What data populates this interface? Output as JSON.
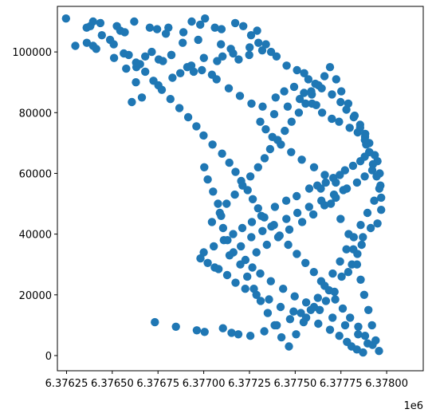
{
  "chart_data": {
    "type": "scatter",
    "title": "",
    "xlabel": "",
    "ylabel": "",
    "x_offset_label": "1e6",
    "xlim": [
      6.3762,
      6.3782
    ],
    "ylim": [
      -5000,
      115000
    ],
    "xticks": [
      6.37625,
      6.3765,
      6.37675,
      6.377,
      6.37725,
      6.3775,
      6.37775,
      6.378
    ],
    "xtick_labels": [
      "6.37625",
      "6.37650",
      "6.37675",
      "6.37700",
      "6.37725",
      "6.37750",
      "6.37775",
      "6.37800"
    ],
    "yticks": [
      0,
      20000,
      40000,
      60000,
      80000,
      100000
    ],
    "ytick_labels": [
      "0",
      "20000",
      "40000",
      "60000",
      "80000",
      "100000"
    ],
    "grid": false,
    "color": "#1f77b4",
    "series": [
      {
        "x": [
          6.376247,
          6.376361,
          6.37636,
          6.376395,
          6.376395,
          6.376435,
          6.376488,
          6.376525,
          6.376544,
          6.376568,
          6.37662,
          6.376705,
          6.376745,
          6.376793,
          6.376807,
          6.376889,
          6.376934,
          6.376981,
          6.377007,
          6.377061,
          6.377097,
          6.377172,
          6.377216,
          6.377259,
          6.377292,
          6.377299,
          6.37732,
          6.37734,
          6.377249,
          6.377191,
          6.377148,
          6.377094,
          6.37697,
          6.376885,
          6.376823,
          6.376777,
          6.376716,
          6.376652,
          6.37659,
          6.37651,
          6.376412,
          6.376298,
          6.376576,
          6.376632,
          6.37668,
          6.376754,
          6.376823,
          6.376932,
          6.377001,
          6.377073,
          6.377103,
          6.377161,
          6.377251,
          6.377368,
          6.377398,
          6.377453,
          6.37751,
          6.377549,
          6.377572,
          6.37761,
          6.377645,
          6.377701,
          6.377748,
          6.37778,
          6.37782,
          6.377855,
          6.377883,
          6.377905,
          6.377935,
          6.37795,
          6.377962,
          6.377966,
          6.37797,
          6.37797,
          6.37795,
          6.377913,
          6.37787,
          6.377863,
          6.37784,
          6.37781,
          6.37779,
          6.377754,
          6.377715,
          6.377668,
          6.377603,
          6.377531,
          6.377472,
          6.377399,
          6.377331,
          6.377255,
          6.377189,
          6.377152,
          6.377105,
          6.377005,
          6.376962,
          6.376848,
          6.376733,
          6.376629,
          6.376607,
          6.376662,
          6.376752,
          6.376829,
          6.376872,
          6.37691,
          6.376945,
          6.37699,
          6.377045,
          6.37707,
          6.377137,
          6.377198,
          6.377261,
          6.377322,
          6.377393,
          6.37744,
          6.377494,
          6.377548,
          6.377592,
          6.377615,
          6.377647,
          6.3777,
          6.37774,
          6.377798,
          6.377842,
          6.377882,
          6.377888,
          6.377905,
          6.37788,
          6.377856,
          6.377816,
          6.377772,
          6.377744,
          6.377708,
          6.377667,
          6.377621,
          6.377577,
          6.377508,
          6.377451,
          6.377389,
          6.377315,
          6.377263,
          6.377211,
          6.377161,
          6.37711,
          6.377055,
          6.377,
          6.376982,
          6.377022,
          6.377081,
          6.377128,
          6.377174,
          6.377227,
          6.377288,
          6.377357,
          6.37742,
          6.377491,
          6.37756,
          6.377626,
          6.37769,
          6.377741,
          6.377783,
          6.377808,
          6.377837,
          6.377871,
          6.377896,
          6.377844,
          6.377773,
          6.377704,
          6.377634,
          6.37756,
          6.377497,
          6.377434,
          6.377367,
          6.377309,
          6.377266,
          6.377228,
          6.377288,
          6.377345,
          6.377407,
          6.377468,
          6.377538,
          6.377599,
          6.37766,
          6.377722,
          6.377763,
          6.377722,
          6.377662,
          6.377603,
          6.377536,
          6.377478,
          6.377422,
          6.377375,
          6.377339,
          6.377309,
          6.377385,
          6.377459,
          6.377525,
          6.377588,
          6.37764,
          6.377695,
          6.377748,
          6.377792,
          6.377818,
          6.377838,
          6.377858,
          6.377877,
          6.3779,
          6.37792,
          6.37794,
          6.377958,
          6.377923,
          6.377882,
          6.377845,
          6.3778,
          6.37776,
          6.377719,
          6.377685,
          6.377642,
          6.377602,
          6.377556,
          6.377509,
          6.377462,
          6.377415,
          6.37737,
          6.377331,
          6.377297,
          6.377268,
          6.37724,
          6.377205,
          6.377174,
          6.37714,
          6.3771,
          6.377048,
          6.376999,
          6.37696,
          6.376915,
          6.376867,
          6.376818,
          6.376771,
          6.376725,
          6.37668,
          6.37663,
          6.376563,
          6.376508,
          6.376443,
          6.37638,
          6.377045,
          6.377088,
          6.377125,
          6.37717,
          6.377212,
          6.377255,
          6.377297,
          6.377333,
          6.377363,
          6.377404,
          6.377443,
          6.37748,
          6.37752,
          6.377557,
          6.377591,
          6.377627,
          6.37766,
          6.37769,
          6.377724,
          6.377752,
          6.37779,
          6.377825,
          6.377855,
          6.377881,
          6.377905,
          6.377925,
          6.377945,
          6.37796,
          6.377932,
          6.377895,
          6.377858,
          6.37782,
          6.37778,
          6.377745,
          6.377705,
          6.377661,
          6.377624,
          6.377585,
          6.377546,
          6.377505,
          6.377466,
          6.377425,
          6.377388,
          6.37735,
          6.377311,
          6.377274,
          6.377238,
          6.3772,
          6.377162,
          6.37713,
          6.377106,
          6.377095,
          6.377078,
          6.377051,
          6.377022,
          6.377003,
          6.37706,
          6.377141,
          6.377203,
          6.37726,
          6.377321,
          6.377384,
          6.377452,
          6.377512,
          6.377576,
          6.377643,
          6.377712,
          6.377782,
          6.377838,
          6.37788,
          6.377921
        ],
        "y": [
          111000,
          103000,
          108000,
          110000,
          102000,
          109500,
          104000,
          108500,
          107000,
          106500,
          110000,
          108000,
          107500,
          106000,
          108000,
          106500,
          110000,
          109000,
          111000,
          108000,
          107500,
          109500,
          108500,
          105500,
          107000,
          103000,
          100500,
          102500,
          99000,
          97500,
          101000,
          102500,
          104000,
          103000,
          99000,
          97000,
          100000,
          96000,
          99000,
          98000,
          101000,
          102000,
          94500,
          95000,
          98500,
          97500,
          99000,
          95500,
          98000,
          97000,
          98500,
          99500,
          101500,
          100000,
          98500,
          95500,
          94000,
          93000,
          91000,
          89500,
          88000,
          86000,
          83500,
          81000,
          78500,
          76000,
          73000,
          70000,
          66000,
          64000,
          60000,
          56000,
          52000,
          48000,
          43500,
          42000,
          39000,
          36500,
          33500,
          30000,
          27500,
          26000,
          21000,
          18000,
          16000,
          14000,
          12000,
          10000,
          8000,
          6500,
          7000,
          7500,
          9000,
          7800,
          8300,
          9500,
          11000,
          90000,
          83500,
          85000,
          89000,
          91500,
          93000,
          95000,
          93500,
          94000,
          92500,
          91000,
          88000,
          85500,
          83000,
          82000,
          85000,
          87000,
          88500,
          86500,
          83000,
          82500,
          80000,
          78000,
          77000,
          75000,
          73500,
          72000,
          69500,
          67000,
          65500,
          64000,
          62500,
          61000,
          59500,
          58500,
          57000,
          56000,
          55000,
          52500,
          51000,
          49000,
          46000,
          44000,
          42000,
          40000,
          38000,
          36000,
          34000,
          32000,
          30500,
          28500,
          26500,
          24000,
          22000,
          20000,
          18500,
          16000,
          14500,
          12500,
          10500,
          8500,
          6500,
          4500,
          3000,
          2000,
          1000,
          4000,
          7000,
          10000,
          12500,
          15000,
          17500,
          19500,
          22000,
          24500,
          27000,
          29000,
          31500,
          34000,
          36500,
          39000,
          41500,
          44000,
          46500,
          49500,
          52000,
          54500,
          57000,
          59500,
          62000,
          64500,
          67000,
          69500,
          72000,
          74500,
          77000,
          79500,
          82000,
          84500,
          87000,
          55000,
          50000,
          45000,
          40000,
          35000,
          30000,
          25000,
          20000,
          15000,
          10000,
          5000,
          1500,
          3500,
          6500,
          9500,
          12500,
          15500,
          18500,
          21500,
          24500,
          27500,
          30500,
          33500,
          36500,
          39500,
          42500,
          45500,
          48500,
          51500,
          54500,
          57500,
          60500,
          63500,
          66500,
          69500,
          72500,
          75500,
          78500,
          81500,
          84500,
          87500,
          90500,
          93500,
          96500,
          99500,
          102500,
          105500,
          108500,
          44000,
          47000,
          50000,
          53000,
          56000,
          59000,
          62000,
          65000,
          68000,
          71000,
          74000,
          77000,
          80000,
          83000,
          86000,
          89000,
          92000,
          95000,
          91000,
          87000,
          83000,
          79000,
          75000,
          71000,
          67000,
          63000,
          59000,
          55000,
          51000,
          47000,
          43000,
          39000,
          35000,
          31000,
          27000,
          23000,
          19000,
          15000,
          11000,
          7000,
          3000,
          6000,
          10000,
          14000,
          18000,
          22000,
          26000,
          30000,
          34000,
          38000,
          42000,
          46000,
          50000,
          54000,
          58000,
          62000,
          29000,
          33000,
          36000,
          39000,
          41000,
          43000,
          45000,
          47000,
          49000,
          51000,
          53000,
          55000,
          57000,
          59000,
          61000
        ]
      }
    ]
  }
}
